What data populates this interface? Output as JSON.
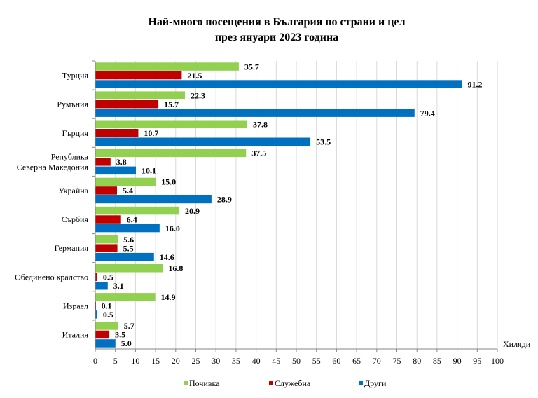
{
  "chart_data": {
    "type": "bar",
    "orientation": "horizontal",
    "title": [
      "Най-много посещения в България по страни и цел",
      "през януари 2023 година"
    ],
    "xlabel": "Хиляди",
    "xlim": [
      0,
      100
    ],
    "xticks": [
      "0",
      "5",
      "10",
      "15",
      "20",
      "25",
      "30",
      "35",
      "40",
      "45",
      "50",
      "55",
      "60",
      "65",
      "70",
      "75",
      "80",
      "85",
      "90",
      "95",
      "100"
    ],
    "grid": true,
    "legend_position": "bottom",
    "categories": [
      "Турция",
      "Румъния",
      "Гърция",
      "Република Северна Македония",
      "Украйна",
      "Сърбия",
      "Германия",
      "Обединено кралство",
      "Израел",
      "Италия"
    ],
    "category_lines": [
      [
        "Турция"
      ],
      [
        "Румъния"
      ],
      [
        "Гърция"
      ],
      [
        "Република",
        "Северна Македония"
      ],
      [
        "Украйна"
      ],
      [
        "Сърбия"
      ],
      [
        "Германия"
      ],
      [
        "Обединено кралство"
      ],
      [
        "Израел"
      ],
      [
        "Италия"
      ]
    ],
    "series": [
      {
        "name": "Почивка",
        "color": "#92d050",
        "values": [
          35.7,
          22.3,
          37.8,
          37.5,
          15.0,
          20.9,
          5.6,
          16.8,
          14.9,
          5.7
        ]
      },
      {
        "name": "Служебна",
        "color": "#c00000",
        "values": [
          21.5,
          15.7,
          10.7,
          3.8,
          5.4,
          6.4,
          5.5,
          0.5,
          0.1,
          3.5
        ]
      },
      {
        "name": "Други",
        "color": "#0070c0",
        "values": [
          91.2,
          79.4,
          53.5,
          10.1,
          28.9,
          16.0,
          14.6,
          3.1,
          0.5,
          5.0
        ]
      }
    ]
  }
}
